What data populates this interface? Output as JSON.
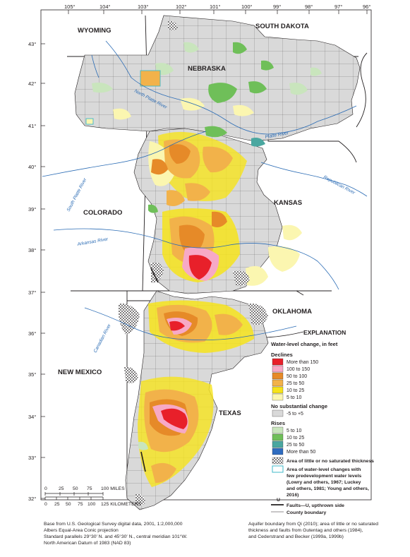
{
  "map": {
    "longitude_labels": [
      "105°",
      "104°",
      "103°",
      "102°",
      "101°",
      "100°",
      "99°",
      "98°",
      "97°",
      "96°"
    ],
    "latitude_labels": [
      "43°",
      "42°",
      "41°",
      "40°",
      "39°",
      "38°",
      "37°",
      "36°",
      "35°",
      "34°",
      "33°",
      "32°"
    ],
    "states": {
      "wyoming": "WYOMING",
      "south_dakota": "SOUTH DAKOTA",
      "nebraska": "NEBRASKA",
      "colorado": "COLORADO",
      "kansas": "KANSAS",
      "oklahoma": "OKLAHOMA",
      "new_mexico": "NEW MEXICO",
      "texas": "TEXAS"
    },
    "rivers": {
      "north_platte": "North Platte River",
      "platte": "Platte River",
      "south_platte": "South Platte River",
      "republican": "Republican River",
      "arkansas": "Arkansas River",
      "canadian": "Canadian River"
    }
  },
  "legend": {
    "title": "EXPLANATION",
    "subtitle": "Water-level change, in feet",
    "declines_heading": "Declines",
    "declines": [
      {
        "label": "More than 150",
        "color": "#e8202a"
      },
      {
        "label": "100 to 150",
        "color": "#f7a9c6"
      },
      {
        "label": "50 to 100",
        "color": "#e68a28"
      },
      {
        "label": "25 to 50",
        "color": "#f2b24a"
      },
      {
        "label": "10 to 25",
        "color": "#f6e31b"
      },
      {
        "label": "5 to 10",
        "color": "#fbf6b0"
      }
    ],
    "no_change_heading": "No substantial change",
    "no_change": {
      "label": "-5 to +5",
      "color": "#d9d9d9"
    },
    "rises_heading": "Rises",
    "rises": [
      {
        "label": "5 to 10",
        "color": "#c9e5bd"
      },
      {
        "label": "10 to 25",
        "color": "#6fbf59"
      },
      {
        "label": "25 to 50",
        "color": "#4aa7a0"
      },
      {
        "label": "More than 50",
        "color": "#2f6cc0"
      }
    ],
    "little_saturated": "Area of little or no saturated thickness",
    "few_levels_lines": [
      "Area of water-level changes with",
      "few predevelopment water levels",
      "(Lowry and others, 1967; Luckey",
      "and others, 1981; Young and others,",
      "2016)"
    ],
    "fault_marker": "U",
    "faults_label": "Faults—U, upthrown side",
    "county_label": "County boundary"
  },
  "scale": {
    "miles_ticks": [
      "0",
      "25",
      "50",
      "75",
      "100 MILES"
    ],
    "km_ticks": [
      "0",
      "25",
      "50",
      "75",
      "100",
      "125 KILOMETERS"
    ]
  },
  "credits": {
    "left": [
      "Base from U.S. Geological Survey digital data, 2001, 1:2,000,000",
      "Albers Equal-Area Conic projection",
      "Standard parallels 29°30′ N. and 45°30′ N., central meridian 101°W.",
      "North American Datum of 1983 (NAD 83)"
    ],
    "right": [
      "Aquifer boundary from Qi (2010); area of little or no saturated",
      "thickness and faults from Gutentag and others (1984),",
      "and Cederstrand and Becker (1999a, 1999b)"
    ]
  },
  "colors": {
    "state_line": "#231f20",
    "river": "#2b6cb5",
    "aquifer_base": "#d9d9d9"
  }
}
